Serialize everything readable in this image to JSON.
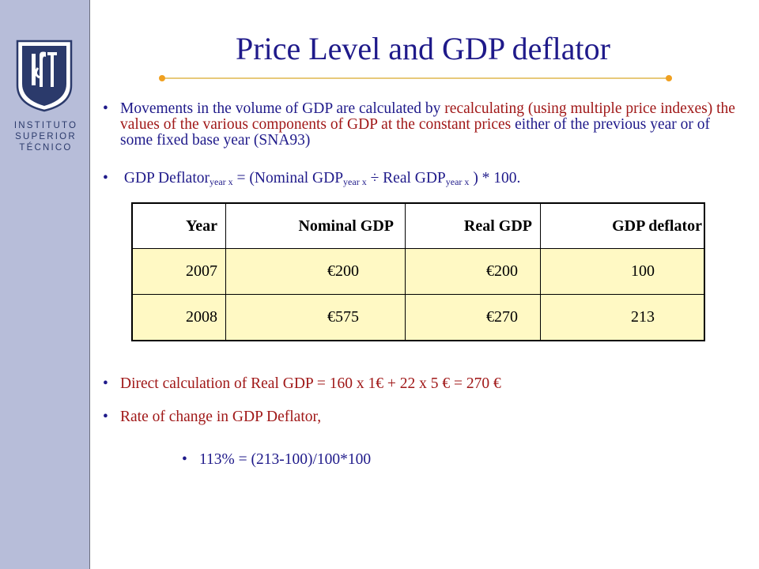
{
  "slide": {
    "title": "Price Level and GDP deflator",
    "logo": {
      "icon": "ist-shield-logo",
      "line1": "INSTITUTO",
      "line2": "SUPERIOR",
      "line3": "TÉCNICO"
    },
    "bullet1": {
      "part1": "Movements in the volume of GDP are calculated by ",
      "part2": "recalculating (using multiple price indexes) the values of the various components of GDP at the constant prices",
      "part3": " either of the previous year or of some fixed base year (SNA93)"
    },
    "bullet2": {
      "a": "GDP Deflator",
      "a_sub": "year x",
      "b": " = (Nominal GDP",
      "b_sub": "year x",
      "c": " ÷ Real GDP",
      "c_sub": "year x",
      "d": " ) * 100."
    },
    "bullet3": "Direct calculation of Real GDP = 160 x 1€ + 22 x 5 € = 270 €",
    "bullet4": "Rate of change in GDP Deflator,",
    "bullet5": "113% = (213-100)/100*100",
    "bullet_glyph": "•"
  },
  "table": {
    "headers": [
      "Year",
      "Nominal GDP",
      "Real GDP",
      "GDP deflator"
    ],
    "rows": [
      [
        "2007",
        "€200",
        "€200",
        "100"
      ],
      [
        "2008",
        "€575",
        "€270",
        "213"
      ]
    ]
  },
  "colors": {
    "title": "#1f1a8a",
    "emphasis": "#a01818",
    "sidebar": "#b7bdd9",
    "table_fill": "#fff9c4",
    "rule": "#e7c97a",
    "rule_dot": "#f0a020"
  }
}
